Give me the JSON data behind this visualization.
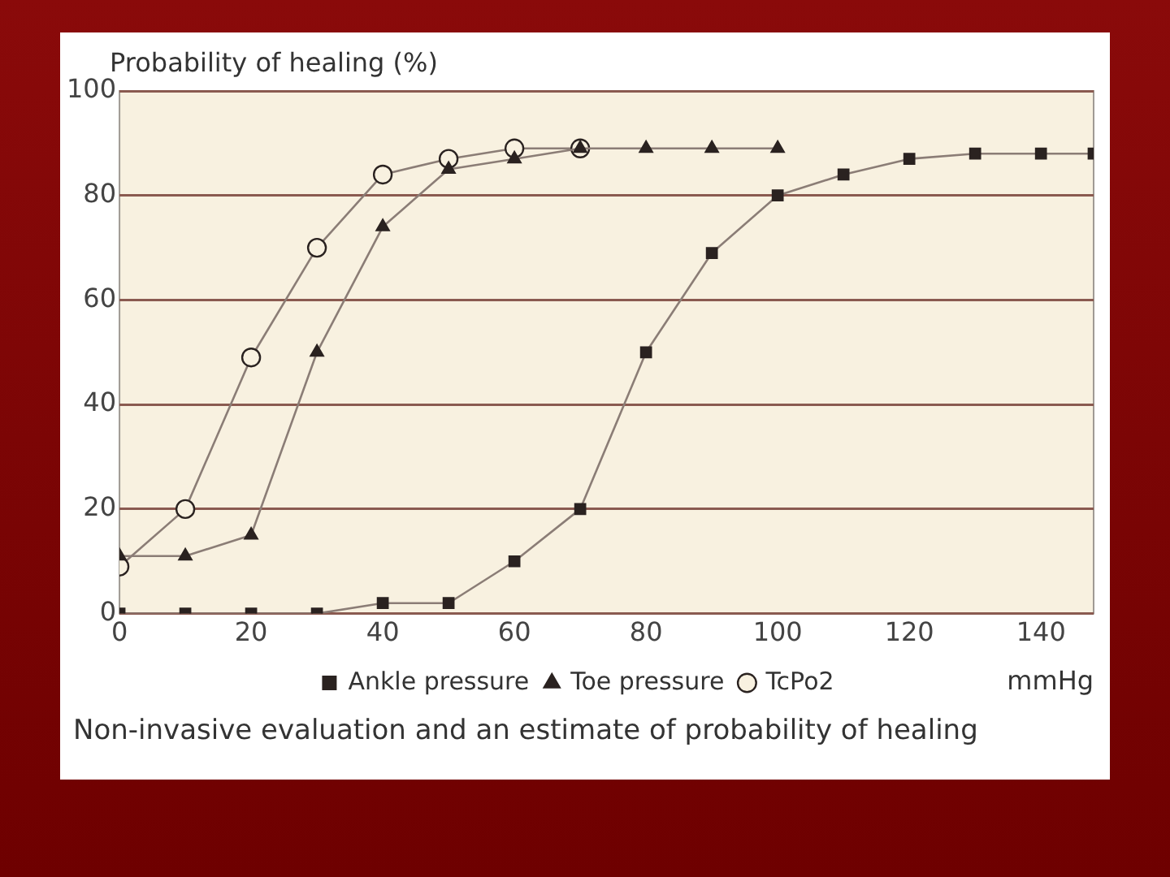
{
  "chart_data": {
    "type": "line",
    "ylabel": "Probability of healing (%)",
    "xlabel": "mmHg",
    "annotations": [
      "Non-invasive evaluation and an estimate of probability of healing"
    ],
    "xlim": [
      0,
      148
    ],
    "xticks": [
      0,
      20,
      40,
      60,
      80,
      100,
      120,
      140
    ],
    "ylim": [
      0,
      100
    ],
    "yticks": [
      0,
      20,
      40,
      60,
      80,
      100
    ],
    "grid": "y",
    "legend": "bottom",
    "line_style": "solid",
    "series": [
      {
        "name": "Ankle pressure",
        "color": "#2a2220",
        "marker": "square",
        "x": [
          0,
          10,
          20,
          30,
          40,
          50,
          60,
          70,
          80,
          90,
          100,
          110,
          120,
          130,
          140,
          148
        ],
        "values": [
          0,
          0,
          0,
          0,
          2,
          2,
          10,
          20,
          50,
          69,
          80,
          84,
          87,
          88,
          88,
          88
        ]
      },
      {
        "name": "Toe pressure",
        "color": "#2a2220",
        "marker": "triangle",
        "x": [
          0,
          10,
          20,
          30,
          40,
          50,
          60,
          70,
          80,
          90,
          100
        ],
        "values": [
          11,
          11,
          15,
          50,
          74,
          85,
          87,
          89,
          89,
          89,
          89
        ]
      },
      {
        "name": "TcPo2",
        "color": "#2a2220",
        "marker": "circle",
        "x": [
          0,
          10,
          20,
          30,
          40,
          50,
          60,
          70
        ],
        "values": [
          9,
          20,
          49,
          70,
          84,
          87,
          89,
          89
        ]
      }
    ]
  }
}
